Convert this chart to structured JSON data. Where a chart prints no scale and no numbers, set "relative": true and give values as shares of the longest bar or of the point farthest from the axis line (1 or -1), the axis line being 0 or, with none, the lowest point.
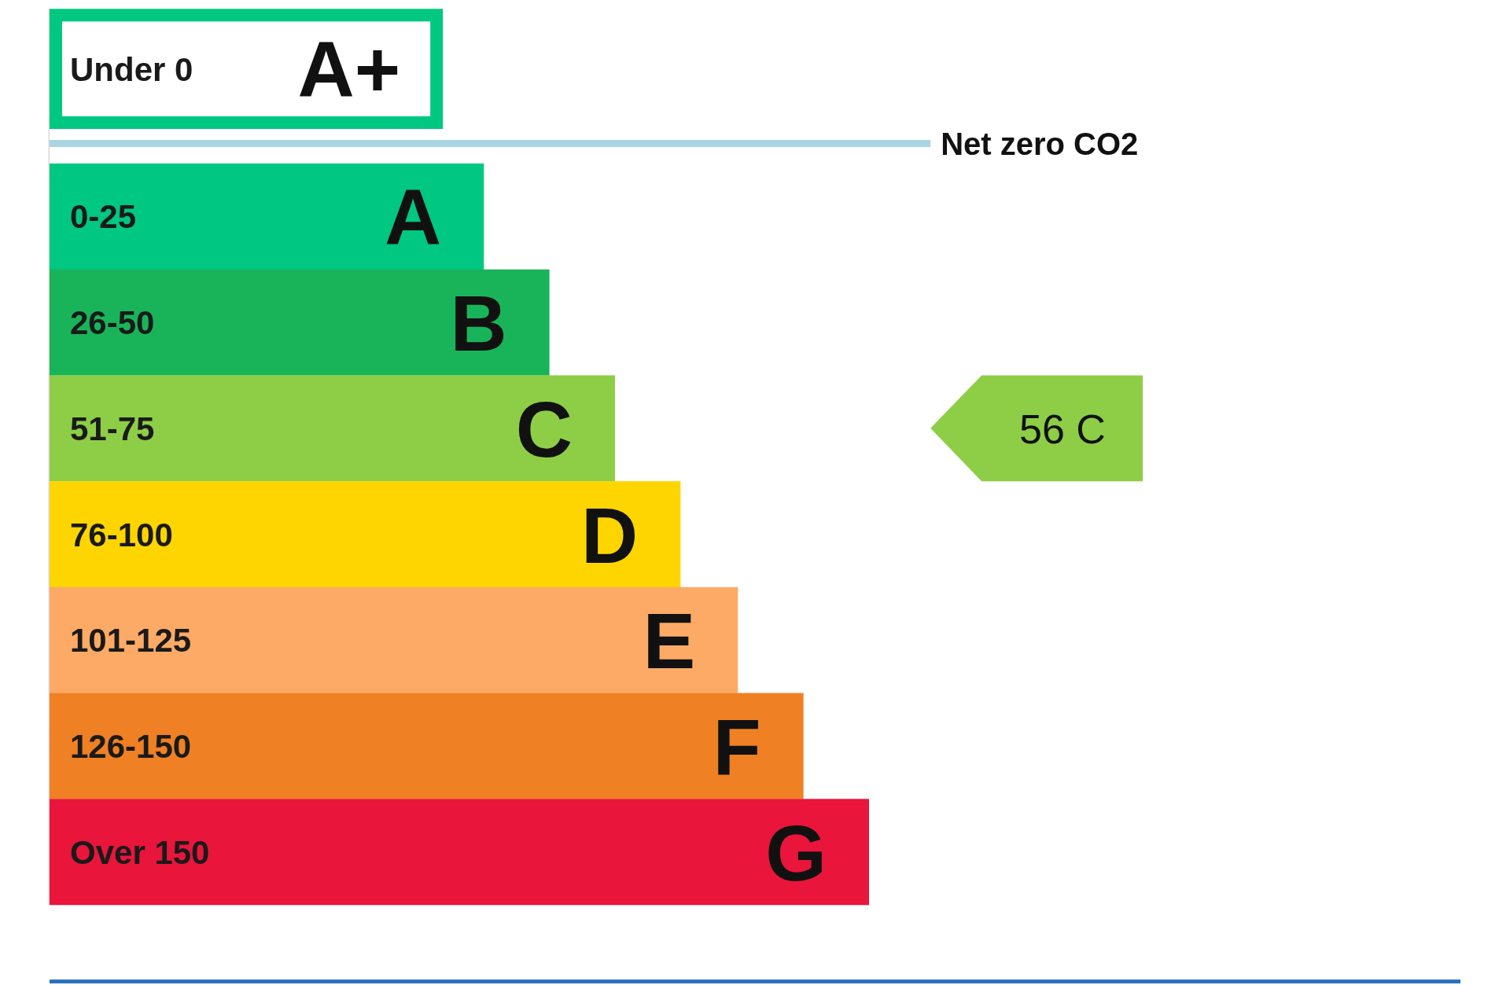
{
  "chart_data": {
    "type": "bar",
    "orientation": "horizontal",
    "relative": true,
    "categories": [
      "Under 0",
      "0-25",
      "26-50",
      "51-75",
      "76-100",
      "101-125",
      "126-150",
      "Over 150"
    ],
    "values": [
      0.48,
      0.53,
      0.61,
      0.69,
      0.77,
      0.84,
      0.92,
      1
    ],
    "colors": [
      "#00c781",
      "#00c781",
      "#19b459",
      "#8dce46",
      "#ffd500",
      "#fcaa65",
      "#ef8023",
      "#e9153b"
    ],
    "ref_lines": [
      {
        "axis": "y",
        "value": "0-25",
        "label": "Net zero CO2",
        "color": "#a9d5e2"
      }
    ],
    "annotations": [
      {
        "text": "A+",
        "x": 0.48,
        "y": "Under 0"
      },
      {
        "text": "A",
        "x": 0.53,
        "y": "0-25"
      },
      {
        "text": "B",
        "x": 0.61,
        "y": "26-50"
      },
      {
        "text": "C",
        "x": 0.69,
        "y": "51-75"
      },
      {
        "text": "D",
        "x": 0.77,
        "y": "76-100"
      },
      {
        "text": "E",
        "x": 0.84,
        "y": "101-125"
      },
      {
        "text": "F",
        "x": 0.92,
        "y": "126-150"
      },
      {
        "text": "G",
        "x": 1,
        "y": "Over 150"
      },
      "56 C"
    ]
  }
}
